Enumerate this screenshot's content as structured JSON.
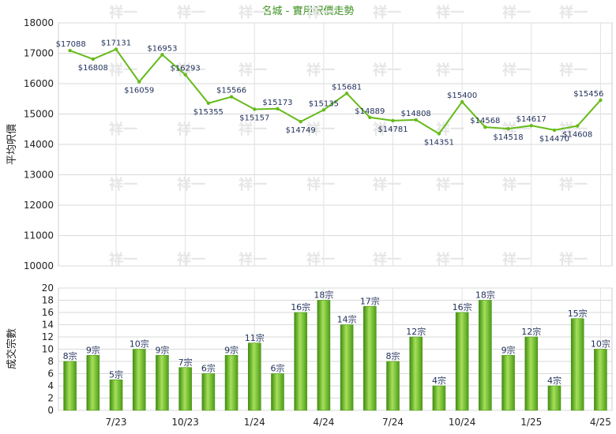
{
  "chart_data": [
    {
      "type": "line",
      "title": "名城 - 實用呎價走勢",
      "ylabel": "平均呎價",
      "ylim": [
        10000,
        18000
      ],
      "yticks": [
        10000,
        11000,
        12000,
        13000,
        14000,
        15000,
        16000,
        17000,
        18000
      ],
      "grid": true,
      "color": "#66bb1a",
      "values": [
        17088,
        16808,
        17131,
        16059,
        16953,
        16293,
        15355,
        15566,
        15157,
        15173,
        14749,
        15135,
        15681,
        14889,
        14781,
        14808,
        14351,
        15400,
        14568,
        14518,
        14617,
        14470,
        14608,
        15456
      ],
      "labels": [
        "$17088",
        "$16808",
        "$17131",
        "$16059",
        "$16953",
        "$16293",
        "$15355",
        "$15566",
        "$15157",
        "$15173",
        "$14749",
        "$15135",
        "$15681",
        "$14889",
        "$14781",
        "$14808",
        "$14351",
        "$15400",
        "$14568",
        "$14518",
        "$14617",
        "$14470",
        "$14608",
        "$15456"
      ]
    },
    {
      "type": "bar",
      "ylabel": "成交宗數",
      "ylim": [
        0,
        20
      ],
      "yticks": [
        0,
        2,
        4,
        6,
        8,
        10,
        12,
        14,
        16,
        18,
        20
      ],
      "grid": true,
      "color": "#66bb1a",
      "values": [
        8,
        9,
        5,
        10,
        9,
        7,
        6,
        9,
        11,
        6,
        16,
        18,
        14,
        17,
        8,
        12,
        4,
        16,
        18,
        9,
        12,
        4,
        15,
        10
      ],
      "labels": [
        "8宗",
        "9宗",
        "5宗",
        "10宗",
        "9宗",
        "7宗",
        "6宗",
        "9宗",
        "11宗",
        "6宗",
        "16宗",
        "18宗",
        "14宗",
        "17宗",
        "8宗",
        "12宗",
        "4宗",
        "16宗",
        "18宗",
        "9宗",
        "12宗",
        "4宗",
        "15宗",
        "10宗"
      ],
      "x_tick_labels": [
        {
          "index": 2,
          "label": "7/23"
        },
        {
          "index": 5,
          "label": "10/23"
        },
        {
          "index": 8,
          "label": "1/24"
        },
        {
          "index": 11,
          "label": "4/24"
        },
        {
          "index": 14,
          "label": "7/24"
        },
        {
          "index": 17,
          "label": "10/24"
        },
        {
          "index": 20,
          "label": "1/25"
        },
        {
          "index": 23,
          "label": "4/25"
        }
      ]
    }
  ],
  "watermark": "祥一"
}
